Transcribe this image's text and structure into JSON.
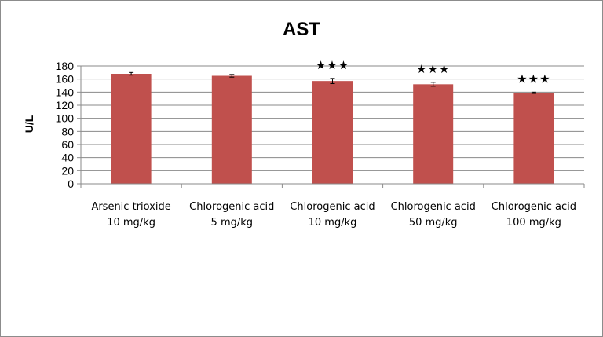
{
  "chart_data": {
    "type": "bar",
    "title": "AST",
    "xlabel": "",
    "ylabel": "U/L",
    "ylim": [
      0,
      180
    ],
    "yticks": [
      0,
      20,
      40,
      60,
      80,
      100,
      120,
      140,
      160,
      180
    ],
    "grid": true,
    "legend": "none",
    "bar_color": "#c0504d",
    "categories": [
      [
        "Arsenic trioxide",
        "10 mg/kg"
      ],
      [
        "Chlorogenic acid",
        "5 mg/kg"
      ],
      [
        "Chlorogenic acid",
        "10 mg/kg"
      ],
      [
        "Chlorogenic acid",
        "50 mg/kg"
      ],
      [
        "Chlorogenic acid",
        "100 mg/kg"
      ]
    ],
    "values": [
      168,
      165,
      157,
      152,
      139
    ],
    "errors": [
      2,
      2,
      4,
      3,
      1
    ],
    "annotations": [
      "",
      "",
      "★★★",
      "★★★",
      "★★★"
    ]
  }
}
